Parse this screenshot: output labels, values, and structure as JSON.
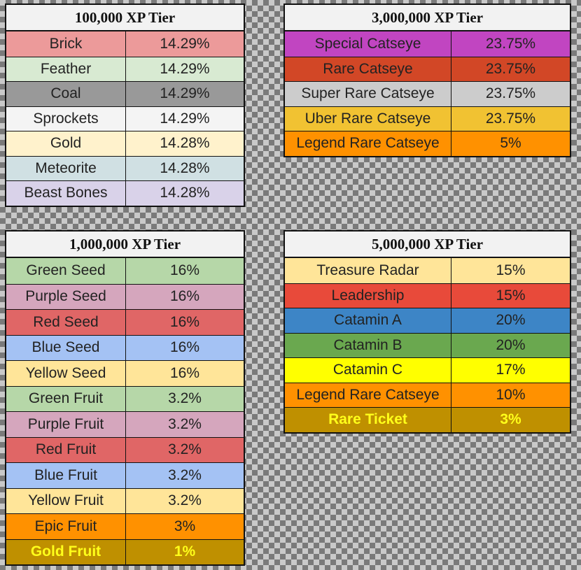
{
  "tiers": [
    {
      "title": "100,000 XP Tier",
      "rows": [
        {
          "name": "Brick",
          "value": "14.29%",
          "color": "#ec9a9a"
        },
        {
          "name": "Feather",
          "value": "14.29%",
          "color": "#d8ead2"
        },
        {
          "name": "Coal",
          "value": "14.29%",
          "color": "#999999"
        },
        {
          "name": "Sprockets",
          "value": "14.29%",
          "color": "#f4f4f4"
        },
        {
          "name": "Gold",
          "value": "14.28%",
          "color": "#fff2cc"
        },
        {
          "name": "Meteorite",
          "value": "14.28%",
          "color": "#d0e0e3"
        },
        {
          "name": "Beast Bones",
          "value": "14.28%",
          "color": "#d9d2e9"
        }
      ]
    },
    {
      "title": "3,000,000 XP Tier",
      "rows": [
        {
          "name": "Special Catseye",
          "value": "23.75%",
          "color": "#c145c1"
        },
        {
          "name": "Rare Catseye",
          "value": "23.75%",
          "color": "#d24726"
        },
        {
          "name": "Super Rare Catseye",
          "value": "23.75%",
          "color": "#cccccc"
        },
        {
          "name": "Uber Rare Catseye",
          "value": "23.75%",
          "color": "#f1c232"
        },
        {
          "name": "Legend Rare Catseye",
          "value": "5%",
          "color": "#ff9100"
        }
      ]
    },
    {
      "title": "1,000,000 XP Tier",
      "rows": [
        {
          "name": "Green Seed",
          "value": "16%",
          "color": "#b6d7a8"
        },
        {
          "name": "Purple Seed",
          "value": "16%",
          "color": "#d5a6bd"
        },
        {
          "name": "Red Seed",
          "value": "16%",
          "color": "#e06666"
        },
        {
          "name": "Blue Seed",
          "value": "16%",
          "color": "#a4c2f4"
        },
        {
          "name": "Yellow Seed",
          "value": "16%",
          "color": "#ffe599"
        },
        {
          "name": "Green Fruit",
          "value": "3.2%",
          "color": "#b6d7a8"
        },
        {
          "name": "Purple Fruit",
          "value": "3.2%",
          "color": "#d5a6bd"
        },
        {
          "name": "Red Fruit",
          "value": "3.2%",
          "color": "#e06666"
        },
        {
          "name": "Blue Fruit",
          "value": "3.2%",
          "color": "#a4c2f4"
        },
        {
          "name": "Yellow Fruit",
          "value": "3.2%",
          "color": "#ffe599"
        },
        {
          "name": "Epic Fruit",
          "value": "3%",
          "color": "#ff9100"
        },
        {
          "name": "Gold Fruit",
          "value": "1%",
          "color": "#bf9000",
          "bold": true
        }
      ]
    },
    {
      "title": "5,000,000 XP Tier",
      "rows": [
        {
          "name": "Treasure Radar",
          "value": "15%",
          "color": "#ffe599"
        },
        {
          "name": "Leadership",
          "value": "15%",
          "color": "#e84a3a"
        },
        {
          "name": "Catamin A",
          "value": "20%",
          "color": "#3d85c6"
        },
        {
          "name": "Catamin B",
          "value": "20%",
          "color": "#6aa84f"
        },
        {
          "name": "Catamin C",
          "value": "17%",
          "color": "#ffff00"
        },
        {
          "name": "Legend Rare Catseye",
          "value": "10%",
          "color": "#ff9100"
        },
        {
          "name": "Rare Ticket",
          "value": "3%",
          "color": "#bf9000",
          "bold": true
        }
      ]
    }
  ]
}
